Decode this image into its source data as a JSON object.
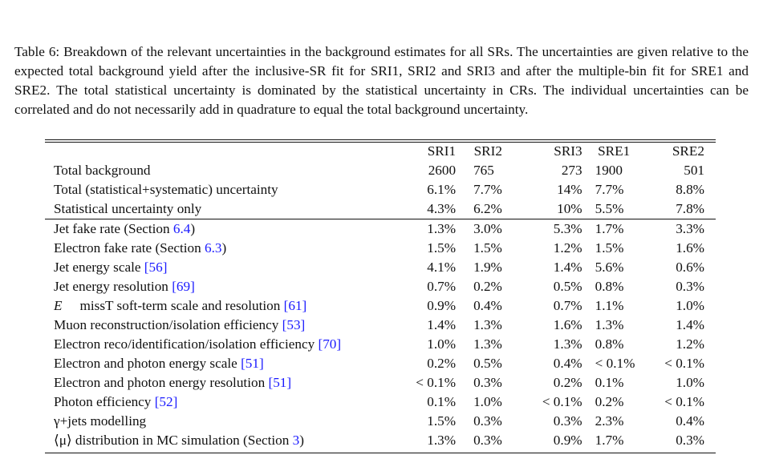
{
  "caption": "Table 6: Breakdown of the relevant uncertainties in the background estimates for all SRs. The uncertainties are given relative to the expected total background yield after the inclusive-SR fit for SRI1, SRI2 and SRI3 and after the multiple-bin fit for SRE1 and SRE2. The total statistical uncertainty is dominated by the statistical uncertainty in CRs. The individual uncertainties can be correlated and do not necessarily add in quadrature to equal the total background uncertainty.",
  "columns": [
    "SRI1",
    "SRI2",
    "SRI3",
    "SRE1",
    "SRE2"
  ],
  "rows": [
    {
      "name": "Total background",
      "ref": "",
      "suffix": "",
      "values": [
        "2600",
        "765",
        "273",
        "1900",
        "501"
      ]
    },
    {
      "name": "Total (statistical+systematic) uncertainty",
      "ref": "",
      "suffix": "",
      "values": [
        "6.1%",
        "7.7%",
        "14%",
        "7.7%",
        "8.8%"
      ]
    },
    {
      "name": "Statistical uncertainty only",
      "ref": "",
      "suffix": "",
      "values": [
        "4.3%",
        "6.2%",
        "10%",
        "5.5%",
        "7.8%"
      ]
    },
    {
      "name": "Jet fake rate (Section ",
      "ref": "6.4",
      "suffix": ")",
      "values": [
        "1.3%",
        "3.0%",
        "5.3%",
        "1.7%",
        "3.3%"
      ]
    },
    {
      "name": "Electron fake rate (Section ",
      "ref": "6.3",
      "suffix": ")",
      "values": [
        "1.5%",
        "1.5%",
        "1.2%",
        "1.5%",
        "1.6%"
      ]
    },
    {
      "name": "Jet energy scale ",
      "ref": "[56]",
      "suffix": "",
      "values": [
        "4.1%",
        "1.9%",
        "1.4%",
        "5.6%",
        "0.6%"
      ]
    },
    {
      "name": "Jet energy resolution ",
      "ref": "[69]",
      "suffix": "",
      "values": [
        "0.7%",
        "0.2%",
        "0.5%",
        "0.8%",
        "0.3%"
      ]
    },
    {
      "name": " soft-term scale and resolution ",
      "ref": "[61]",
      "suffix": "",
      "values": [
        "0.9%",
        "0.4%",
        "0.7%",
        "1.1%",
        "1.0%"
      ],
      "etmiss": {
        "sym": "E",
        "sub": "T",
        "sup": "miss"
      }
    },
    {
      "name": "Muon reconstruction/isolation efficiency ",
      "ref": "[53]",
      "suffix": "",
      "values": [
        "1.4%",
        "1.3%",
        "1.6%",
        "1.3%",
        "1.4%"
      ]
    },
    {
      "name": "Electron reco/identification/isolation efficiency ",
      "ref": "[70]",
      "suffix": "",
      "values": [
        "1.0%",
        "1.3%",
        "1.3%",
        "0.8%",
        "1.2%"
      ]
    },
    {
      "name": "Electron and photon energy scale ",
      "ref": "[51]",
      "suffix": "",
      "values": [
        "0.2%",
        "0.5%",
        "0.4%",
        "< 0.1%",
        "< 0.1%"
      ]
    },
    {
      "name": "Electron and photon energy resolution ",
      "ref": "[51]",
      "suffix": "",
      "values": [
        "< 0.1%",
        "0.3%",
        "0.2%",
        "0.1%",
        "1.0%"
      ]
    },
    {
      "name": "Photon efficiency ",
      "ref": "[52]",
      "suffix": "",
      "values": [
        "0.1%",
        "1.0%",
        "< 0.1%",
        "0.2%",
        "< 0.1%"
      ]
    },
    {
      "name": "γ+jets modelling",
      "ref": "",
      "suffix": "",
      "values": [
        "1.5%",
        "0.3%",
        "0.3%",
        "2.3%",
        "0.4%"
      ]
    },
    {
      "name": "⟨μ⟩ distribution in MC simulation (Section ",
      "ref": "3",
      "suffix": ")",
      "values": [
        "1.3%",
        "0.3%",
        "0.9%",
        "1.7%",
        "0.3%"
      ]
    }
  ]
}
